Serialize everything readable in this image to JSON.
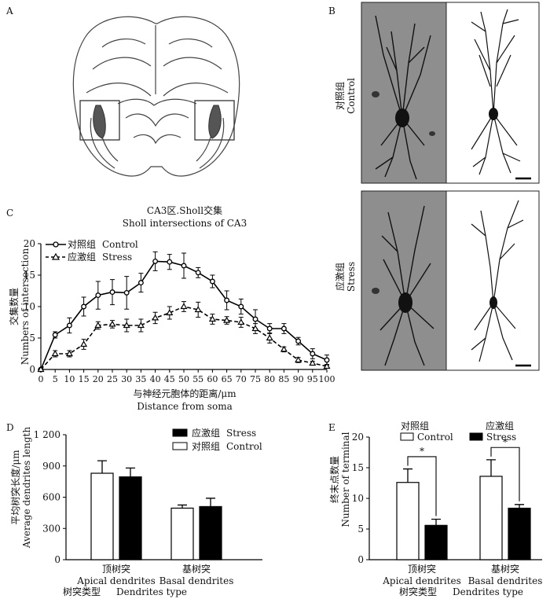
{
  "panel_labels": {
    "a": "A",
    "b": "B",
    "c": "C",
    "d": "D",
    "e": "E"
  },
  "panel_b": {
    "control_label_cn": "对照组",
    "control_label_en": "Control",
    "stress_label_cn": "应激组",
    "stress_label_en": "Stress"
  },
  "colors": {
    "control": "#ffffff",
    "stress": "#000000",
    "hippocampus": "#555555"
  },
  "chart_data": [
    {
      "id": "sholl",
      "type": "line",
      "title_cn": "CA3区.Sholl交集",
      "title_en": "Sholl intersections of CA3",
      "xlabel_cn": "与神经元胞体的距离/μm",
      "xlabel_en": "Distance from soma",
      "ylabel_cn": "交集数量",
      "ylabel_en": "Numbers of intersection",
      "x": [
        0,
        5,
        10,
        15,
        20,
        25,
        30,
        35,
        40,
        45,
        50,
        55,
        60,
        65,
        70,
        75,
        80,
        85,
        90,
        95,
        100
      ],
      "x_tick_labels": [
        "0",
        "5",
        "10",
        "15",
        "20",
        "25",
        "30",
        "35",
        "40",
        "45",
        "50",
        "55",
        "60",
        "65",
        "70",
        "75",
        "80",
        "85",
        "90",
        "95",
        "100"
      ],
      "ylim": [
        0,
        20
      ],
      "y_ticks": [
        "0",
        "5",
        "10",
        "15",
        "20"
      ],
      "legend": [
        {
          "key": "control",
          "cn": "对照组",
          "en": "Control"
        },
        {
          "key": "stress",
          "cn": "应激组",
          "en": "Stress"
        }
      ],
      "series": [
        {
          "name": "Control",
          "marker": "circle",
          "line": "solid",
          "values": [
            0,
            5.5,
            7,
            10,
            11.8,
            12.3,
            12.2,
            13.8,
            17.2,
            17.1,
            16.5,
            15.4,
            14,
            11,
            10,
            8,
            6.5,
            6.5,
            4.5,
            2.5,
            1.5
          ],
          "errors": [
            0,
            0.5,
            1.2,
            1.5,
            2.2,
            2.0,
            2.6,
            1.5,
            1.5,
            1.2,
            2.0,
            0.8,
            1.0,
            1.5,
            1.2,
            1.5,
            0.8,
            0.8,
            0.6,
            0.8,
            0.8
          ]
        },
        {
          "name": "Stress",
          "marker": "triangle",
          "line": "dashed",
          "values": [
            0,
            2.5,
            2.5,
            4,
            7,
            7.2,
            7,
            7,
            8.2,
            9,
            10,
            9.5,
            8,
            7.8,
            7.5,
            6.5,
            5,
            3.2,
            1.5,
            1,
            0.5
          ],
          "errors": [
            0,
            0.5,
            0.5,
            0.8,
            0.6,
            0.6,
            1.0,
            1.0,
            0.9,
            1.0,
            0.8,
            1.2,
            0.8,
            0.6,
            0.8,
            0.8,
            0.8,
            0.4,
            0.4,
            0.3,
            0.3
          ]
        }
      ]
    },
    {
      "id": "length",
      "type": "bar",
      "ylabel_cn": "平均树突长度/μm",
      "ylabel_en": "Average dendrites length",
      "xlabel_cn": "树突类型",
      "xlabel_en": "Dendrites type",
      "ylim": [
        0,
        1200
      ],
      "y_ticks": [
        "0",
        "300",
        "600",
        "900",
        "1 200"
      ],
      "categories": [
        {
          "cn": "顶树突",
          "en": "Apical dendrites"
        },
        {
          "cn": "基树突",
          "en": "Basal dendrites"
        }
      ],
      "legend": [
        {
          "key": "stress",
          "cn": "应激组",
          "en": "Stress"
        },
        {
          "key": "control",
          "cn": "对照组",
          "en": "Control"
        }
      ],
      "series": [
        {
          "name": "Control",
          "values": [
            830,
            495
          ],
          "errors": [
            120,
            30
          ]
        },
        {
          "name": "Stress",
          "values": [
            795,
            510
          ],
          "errors": [
            85,
            80
          ]
        }
      ]
    },
    {
      "id": "terminal",
      "type": "bar",
      "ylabel_cn": "终末点数量",
      "ylabel_en": "Number of terminal",
      "xlabel_cn": "树突类型",
      "xlabel_en": "Dendrites type",
      "ylim": [
        0,
        20
      ],
      "y_ticks": [
        "0",
        "5",
        "10",
        "15",
        "20"
      ],
      "categories": [
        {
          "cn": "顶树突",
          "en": "Apical dendrites"
        },
        {
          "cn": "基树突",
          "en": "Basal dendrites"
        }
      ],
      "legend": [
        {
          "key": "control",
          "cn": "对照组",
          "en": "Control"
        },
        {
          "key": "stress",
          "cn": "应激组",
          "en": "Stress"
        }
      ],
      "significance": [
        "*",
        "*"
      ],
      "series": [
        {
          "name": "Control",
          "values": [
            12.6,
            13.6
          ],
          "errors": [
            2.2,
            2.7
          ]
        },
        {
          "name": "Stress",
          "values": [
            5.6,
            8.4
          ],
          "errors": [
            1.0,
            0.6
          ]
        }
      ]
    }
  ]
}
